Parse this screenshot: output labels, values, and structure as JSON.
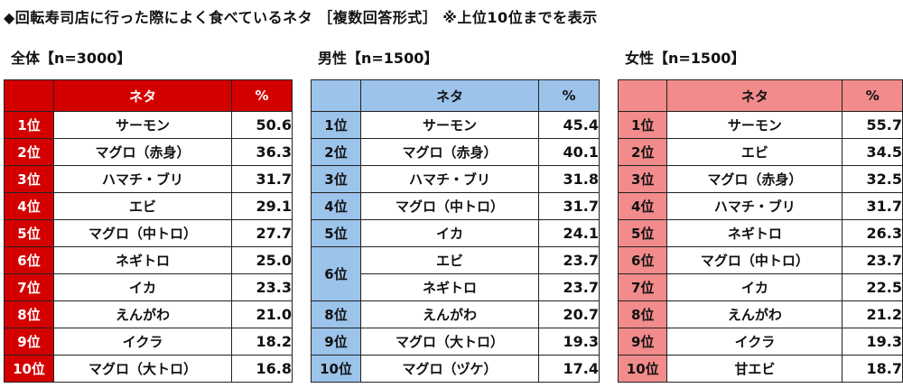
{
  "title": "◆回転寿司店に行った際によく食べているネタ ［複数回答形式］ ※上位10位までを表示",
  "header": {
    "rank": "",
    "item": "ネタ",
    "pct": "%"
  },
  "chart_data": {
    "type": "table",
    "tables": [
      {
        "name": "全体【n=3000】",
        "rows": [
          {
            "rank": "1位",
            "item": "サーモン",
            "pct": 50.6
          },
          {
            "rank": "2位",
            "item": "マグロ（赤身）",
            "pct": 36.3
          },
          {
            "rank": "3位",
            "item": "ハマチ・ブリ",
            "pct": 31.7
          },
          {
            "rank": "4位",
            "item": "エビ",
            "pct": 29.1
          },
          {
            "rank": "5位",
            "item": "マグロ（中トロ）",
            "pct": 27.7
          },
          {
            "rank": "6位",
            "item": "ネギトロ",
            "pct": 25.0
          },
          {
            "rank": "7位",
            "item": "イカ",
            "pct": 23.3
          },
          {
            "rank": "8位",
            "item": "えんがわ",
            "pct": 21.0
          },
          {
            "rank": "9位",
            "item": "イクラ",
            "pct": 18.2
          },
          {
            "rank": "10位",
            "item": "マグロ（大トロ）",
            "pct": 16.8
          }
        ]
      },
      {
        "name": "男性【n=1500】",
        "rows": [
          {
            "rank": "1位",
            "item": "サーモン",
            "pct": 45.4
          },
          {
            "rank": "2位",
            "item": "マグロ（赤身）",
            "pct": 40.1
          },
          {
            "rank": "3位",
            "item": "ハマチ・ブリ",
            "pct": 31.8
          },
          {
            "rank": "4位",
            "item": "マグロ（中トロ）",
            "pct": 31.7
          },
          {
            "rank": "5位",
            "item": "イカ",
            "pct": 24.1
          },
          {
            "rank": "6位",
            "item": "エビ",
            "pct": 23.7
          },
          {
            "rank": "6位",
            "item": "ネギトロ",
            "pct": 23.7
          },
          {
            "rank": "8位",
            "item": "えんがわ",
            "pct": 20.7
          },
          {
            "rank": "9位",
            "item": "マグロ（大トロ）",
            "pct": 19.3
          },
          {
            "rank": "10位",
            "item": "マグロ（ヅケ）",
            "pct": 17.4
          }
        ]
      },
      {
        "name": "女性【n=1500】",
        "rows": [
          {
            "rank": "1位",
            "item": "サーモン",
            "pct": 55.7
          },
          {
            "rank": "2位",
            "item": "エビ",
            "pct": 34.5
          },
          {
            "rank": "3位",
            "item": "マグロ（赤身）",
            "pct": 32.5
          },
          {
            "rank": "4位",
            "item": "ハマチ・ブリ",
            "pct": 31.7
          },
          {
            "rank": "5位",
            "item": "ネギトロ",
            "pct": 26.3
          },
          {
            "rank": "6位",
            "item": "マグロ（中トロ）",
            "pct": 23.7
          },
          {
            "rank": "7位",
            "item": "イカ",
            "pct": 22.5
          },
          {
            "rank": "8位",
            "item": "えんがわ",
            "pct": 21.2
          },
          {
            "rank": "9位",
            "item": "イクラ",
            "pct": 19.3
          },
          {
            "rank": "10位",
            "item": "甘エビ",
            "pct": 18.7
          }
        ]
      }
    ]
  },
  "colors": {
    "total_accent": "#d40000",
    "male_accent": "#9cc3ea",
    "female_accent": "#f28b8b"
  }
}
